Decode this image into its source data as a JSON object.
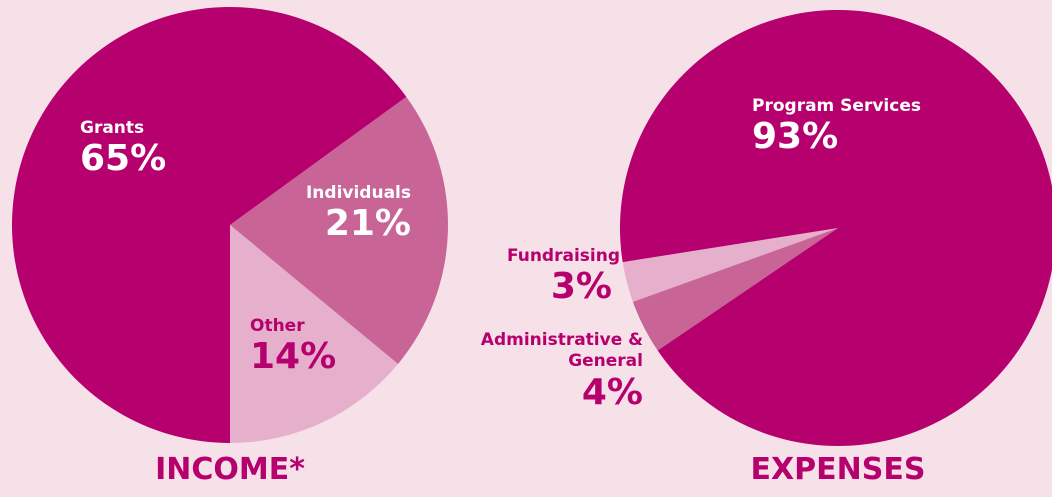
{
  "chart_data": [
    {
      "type": "pie",
      "title": "INCOME*",
      "categories": [
        "Grants",
        "Individuals",
        "Other"
      ],
      "values": [
        65,
        21,
        14
      ],
      "value_labels": [
        "65%",
        "21%",
        "14%"
      ],
      "colors": [
        "#b5006e",
        "#c86496",
        "#e6b0cc"
      ]
    },
    {
      "type": "pie",
      "title": "EXPENSES",
      "categories": [
        "Fundraising",
        "Administrative & General",
        "Program Services"
      ],
      "values": [
        3,
        4,
        93
      ],
      "value_labels": [
        "3%",
        "4%",
        "93%"
      ],
      "colors": [
        "#e6b0cc",
        "#c86496",
        "#b5006e"
      ]
    }
  ]
}
